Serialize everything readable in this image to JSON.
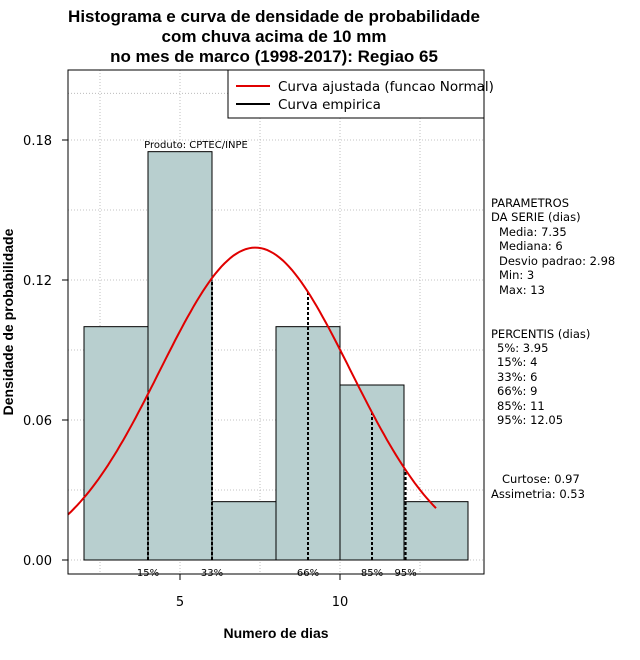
{
  "title_lines": [
    "Histograma e curva de densidade de probabilidade",
    "com chuva acima de 10 mm",
    "no mes de marco (1998-2017): Regiao 65"
  ],
  "colors": {
    "bar_fill": "#b8cfcf",
    "normal_curve": "#e00000",
    "empirical": "#000000",
    "grid": "#b0b0b0"
  },
  "chart_data": {
    "type": "bar",
    "xlabel": "Numero de dias",
    "ylabel": "Densidade de probabilidade",
    "xlim": [
      1.5,
      14.5
    ],
    "ylim": [
      -0.006,
      0.21
    ],
    "x_ticks": [
      5,
      10
    ],
    "y_ticks": [
      0.0,
      0.06,
      0.12,
      0.18
    ],
    "y_tick_labels": [
      "0.00",
      "0.06",
      "0.12",
      "0.18"
    ],
    "grid": true,
    "bins": [
      {
        "x0": 2,
        "x1": 4,
        "density": 0.1
      },
      {
        "x0": 4,
        "x1": 6,
        "density": 0.175
      },
      {
        "x0": 6,
        "x1": 8,
        "density": 0.025
      },
      {
        "x0": 8,
        "x1": 10,
        "density": 0.1
      },
      {
        "x0": 10,
        "x1": 12,
        "density": 0.075
      },
      {
        "x0": 12,
        "x1": 14,
        "density": 0.025
      }
    ],
    "normal_curve": {
      "mean": 7.35,
      "sd": 2.98,
      "x_start": 1.5,
      "x_end": 13
    },
    "percentile_lines": [
      {
        "label": "15%",
        "x": 4,
        "y": 0.0697
      },
      {
        "label": "33%",
        "x": 6,
        "y": 0.1197
      },
      {
        "label": "66%",
        "x": 9,
        "y": 0.1149
      },
      {
        "label": "85%",
        "x": 11,
        "y": 0.063
      },
      {
        "label": "95%",
        "x": 12.05,
        "y": 0.0388
      }
    ],
    "legend": {
      "position": "top-right",
      "entries": [
        "Curva ajustada (funcao Normal)",
        "Curva empirica"
      ]
    },
    "annotation": "Produto: CPTEC/INPE"
  },
  "side_panel": {
    "params_title": [
      "PARAMETROS",
      "DA SERIE (dias)"
    ],
    "params": [
      "Media: 7.35",
      "Mediana: 6",
      "Desvio padrao: 2.98",
      "Min: 3",
      "Max: 13"
    ],
    "percentis_title": "PERCENTIS (dias)",
    "percentis": [
      "5%: 3.95",
      "15%: 4",
      "33%: 6",
      "66%: 9",
      "85%: 11",
      "95%: 12.05"
    ],
    "curtose": "Curtose: 0.97",
    "assimetria": "Assimetria: 0.53"
  }
}
